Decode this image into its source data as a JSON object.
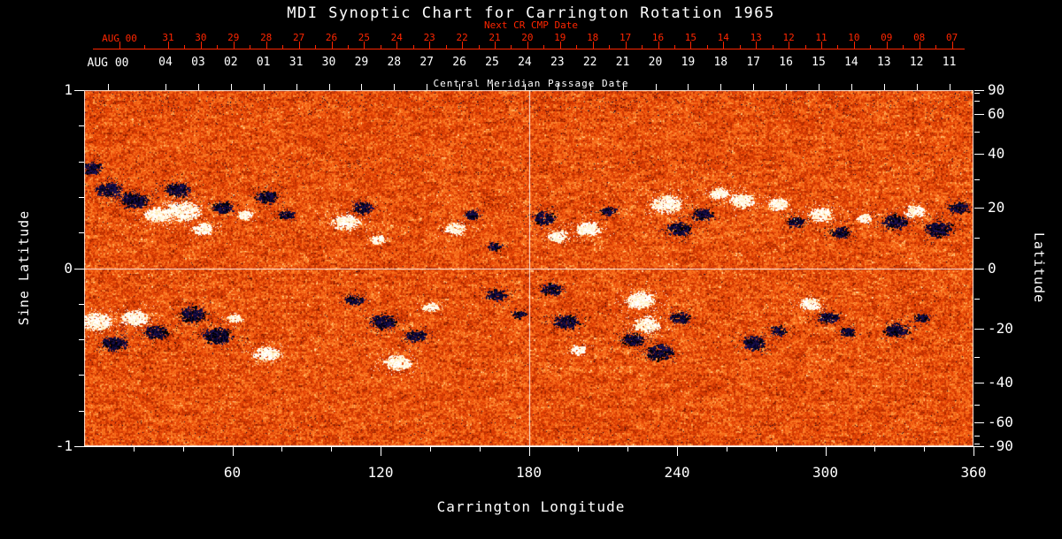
{
  "chart_data": {
    "type": "heatmap",
    "title": "MDI Synoptic Chart for Carrington Rotation 1965",
    "xlabel": "Carrington Longitude",
    "ylabel_left": "Sine Latitude",
    "ylabel_right": "Latitude",
    "xlim": [
      0,
      360
    ],
    "ylim_sine": [
      -1,
      1
    ],
    "x_ticks": [
      60,
      120,
      180,
      240,
      300,
      360
    ],
    "x_minor_step": 20,
    "y_ticks_left": [
      1,
      0,
      -1
    ],
    "y_minor_step_left": 0.2,
    "y_ticks_right_latitude": [
      90,
      60,
      40,
      20,
      0,
      -20,
      -40,
      -60,
      -90
    ],
    "y_minor_ticks_right_latitude": [
      80,
      70,
      50,
      30,
      10,
      -10,
      -30,
      -50,
      -70,
      -80
    ],
    "grid_lines": {
      "longitude": 180,
      "sine_latitude": 0
    },
    "next_cr_axis": {
      "label": "Next CR CMP Date",
      "first_label": "AUG 00",
      "tick_labels": [
        "31",
        "30",
        "29",
        "28",
        "27",
        "26",
        "25",
        "24",
        "23",
        "22",
        "21",
        "20",
        "19",
        "18",
        "17",
        "16",
        "15",
        "14",
        "13",
        "12",
        "11",
        "10",
        "09",
        "08",
        "07"
      ],
      "color": "#ff2600"
    },
    "cmp_axis": {
      "label": "Central Meridian Passage Date",
      "first_label": "AUG 00",
      "tick_labels": [
        "04",
        "03",
        "02",
        "01",
        "31",
        "30",
        "29",
        "28",
        "27",
        "26",
        "25",
        "24",
        "23",
        "22",
        "21",
        "20",
        "19",
        "18",
        "17",
        "16",
        "15",
        "14",
        "13",
        "12",
        "11"
      ],
      "color": "#ffffff"
    },
    "palette": {
      "background": "#000000",
      "quiet_sun_low": "#7d1a00",
      "quiet_sun_mid": "#f55a10",
      "quiet_sun_high": "#ff9a40",
      "quiet_sun_bright": "#ffe4b0",
      "positive_polarity": "#ffffff",
      "negative_polarity": "#06032a",
      "axis_text": "#ffffff"
    },
    "active_regions": [
      [
        3,
        0.56,
        9,
        -1
      ],
      [
        10,
        0.44,
        11,
        -1
      ],
      [
        20,
        0.38,
        13,
        -1
      ],
      [
        30,
        0.3,
        12,
        1
      ],
      [
        40,
        0.32,
        15,
        1
      ],
      [
        48,
        0.22,
        9,
        1
      ],
      [
        38,
        0.44,
        11,
        -1
      ],
      [
        56,
        0.34,
        9,
        -1
      ],
      [
        65,
        0.3,
        7,
        1
      ],
      [
        74,
        0.4,
        10,
        -1
      ],
      [
        82,
        0.3,
        7,
        -1
      ],
      [
        106,
        0.26,
        12,
        1
      ],
      [
        113,
        0.34,
        9,
        -1
      ],
      [
        119,
        0.16,
        7,
        1
      ],
      [
        150,
        0.22,
        9,
        1
      ],
      [
        157,
        0.3,
        7,
        -1
      ],
      [
        166,
        0.12,
        6,
        -1
      ],
      [
        186,
        0.28,
        10,
        -1
      ],
      [
        192,
        0.18,
        9,
        1
      ],
      [
        204,
        0.22,
        11,
        1
      ],
      [
        212,
        0.32,
        7,
        -1
      ],
      [
        236,
        0.36,
        13,
        1
      ],
      [
        241,
        0.22,
        11,
        -1
      ],
      [
        250,
        0.3,
        9,
        -1
      ],
      [
        257,
        0.42,
        9,
        1
      ],
      [
        266,
        0.38,
        11,
        1
      ],
      [
        281,
        0.36,
        9,
        1
      ],
      [
        288,
        0.26,
        8,
        -1
      ],
      [
        298,
        0.3,
        11,
        1
      ],
      [
        306,
        0.2,
        9,
        -1
      ],
      [
        316,
        0.28,
        7,
        1
      ],
      [
        328,
        0.26,
        11,
        -1
      ],
      [
        336,
        0.32,
        9,
        1
      ],
      [
        346,
        0.22,
        12,
        -1
      ],
      [
        354,
        0.34,
        9,
        -1
      ],
      [
        5,
        -0.3,
        13,
        1
      ],
      [
        12,
        -0.42,
        11,
        -1
      ],
      [
        21,
        -0.28,
        12,
        1
      ],
      [
        29,
        -0.36,
        11,
        -1
      ],
      [
        44,
        -0.26,
        12,
        -1
      ],
      [
        54,
        -0.38,
        13,
        -1
      ],
      [
        61,
        -0.28,
        7,
        1
      ],
      [
        74,
        -0.48,
        11,
        1
      ],
      [
        109,
        -0.18,
        8,
        -1
      ],
      [
        121,
        -0.3,
        11,
        -1
      ],
      [
        127,
        -0.53,
        12,
        1
      ],
      [
        134,
        -0.38,
        9,
        -1
      ],
      [
        140,
        -0.22,
        7,
        1
      ],
      [
        167,
        -0.15,
        9,
        -1
      ],
      [
        176,
        -0.26,
        6,
        -1
      ],
      [
        189,
        -0.12,
        9,
        -1
      ],
      [
        195,
        -0.3,
        11,
        -1
      ],
      [
        200,
        -0.46,
        7,
        1
      ],
      [
        222,
        -0.4,
        10,
        -1
      ],
      [
        225,
        -0.18,
        13,
        1
      ],
      [
        228,
        -0.32,
        12,
        1
      ],
      [
        233,
        -0.47,
        12,
        -1
      ],
      [
        241,
        -0.28,
        9,
        -1
      ],
      [
        271,
        -0.42,
        11,
        -1
      ],
      [
        281,
        -0.35,
        7,
        -1
      ],
      [
        294,
        -0.2,
        9,
        1
      ],
      [
        301,
        -0.28,
        9,
        -1
      ],
      [
        309,
        -0.36,
        7,
        -1
      ],
      [
        329,
        -0.35,
        11,
        -1
      ],
      [
        339,
        -0.28,
        7,
        -1
      ]
    ]
  }
}
